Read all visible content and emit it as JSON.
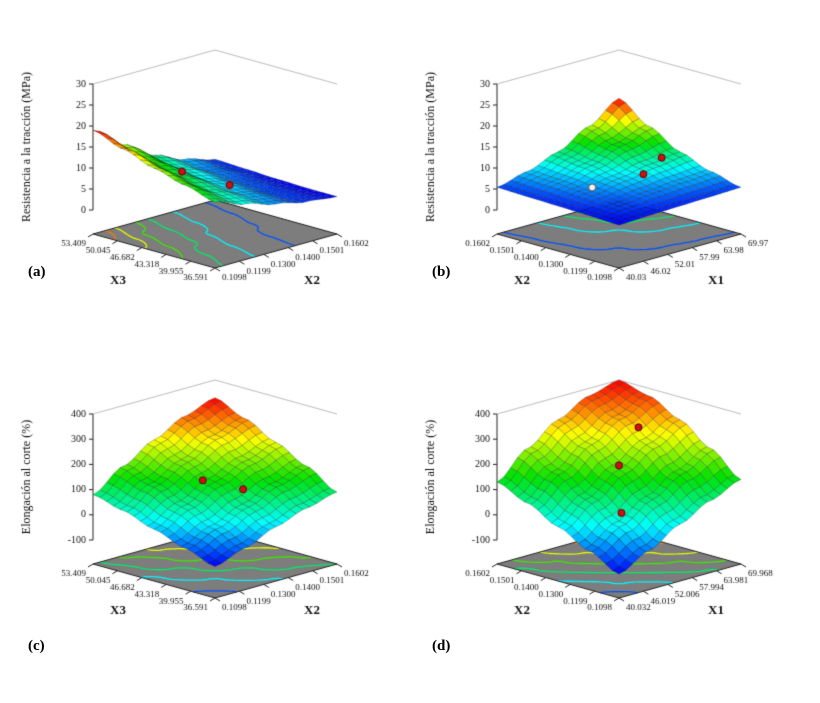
{
  "palette": {
    "base_fill": "#7d7d7d",
    "axis_color": "#222222",
    "text_color": "#111111",
    "mesh_stroke": "rgba(0,0,0,0.45)",
    "point_red": "#cc1111",
    "point_red_edge": "#660000",
    "point_white": "#f2f2f2",
    "colormap_stops": [
      [
        0,
        0,
        255
      ],
      [
        0,
        255,
        255
      ],
      [
        0,
        225,
        0
      ],
      [
        255,
        255,
        0
      ],
      [
        255,
        0,
        0
      ]
    ]
  },
  "contour_levels_fracs": [
    0.08,
    0.24,
    0.4,
    0.56,
    0.72,
    0.88
  ],
  "chart_data": [
    {
      "panel_label": "(a)",
      "type": "surface3d",
      "z_label": "Resistencia a la tracción (MPa)",
      "z_range": [
        0,
        30
      ],
      "z_ticks": [
        "0",
        "5",
        "10",
        "15",
        "20",
        "25",
        "30"
      ],
      "left_axis": {
        "title": "X3",
        "ticks_top_to_bottom": [
          "53.409",
          "50.045",
          "46.682",
          "43.318",
          "39.955",
          "36.591"
        ]
      },
      "right_axis": {
        "title": "X2",
        "ticks_bottom_to_top": [
          "0.1098",
          "0.1199",
          "0.1300",
          "0.1400",
          "0.1501",
          "0.1602"
        ]
      },
      "surface_grid_rows_v0_to_v1": [
        [
          10.0,
          7.5,
          5.5,
          4.0,
          3.2
        ],
        [
          12.0,
          8.5,
          6.0,
          4.2,
          3.2
        ],
        [
          14.0,
          10.0,
          6.8,
          4.6,
          3.4
        ],
        [
          16.5,
          11.5,
          7.8,
          5.2,
          3.7
        ],
        [
          19.0,
          13.5,
          9.0,
          6.0,
          4.0
        ]
      ],
      "design_points": [
        {
          "u": 0.28,
          "v": 0.55,
          "color": "red"
        },
        {
          "u": 0.5,
          "v": 0.38,
          "color": "red"
        }
      ]
    },
    {
      "panel_label": "(b)",
      "type": "surface3d",
      "z_label": "Resistencia a la tracción (MPa)",
      "z_range": [
        0,
        30
      ],
      "z_ticks": [
        "0",
        "5",
        "10",
        "15",
        "20",
        "25",
        "30"
      ],
      "left_axis": {
        "title": "X2",
        "ticks_top_to_bottom": [
          "0.1602",
          "0.1501",
          "0.1400",
          "0.1300",
          "0.1199",
          "0.1098"
        ]
      },
      "right_axis": {
        "title": "X1",
        "ticks_bottom_to_top": [
          "40.03",
          "46.02",
          "52.01",
          "57.99",
          "63.98",
          "69.97"
        ]
      },
      "surface_grid_rows_v0_to_v1": [
        [
          4.5,
          4.8,
          5.0,
          5.2,
          5.4
        ],
        [
          4.8,
          5.5,
          6.2,
          6.8,
          7.2
        ],
        [
          5.0,
          6.2,
          7.5,
          8.8,
          9.8
        ],
        [
          5.2,
          6.8,
          8.8,
          11.5,
          13.8
        ],
        [
          5.4,
          7.2,
          9.8,
          13.8,
          18.5
        ]
      ],
      "design_points": [
        {
          "u": 0.3,
          "v": 0.52,
          "color": "white"
        },
        {
          "u": 0.62,
          "v": 0.42,
          "color": "red"
        },
        {
          "u": 0.85,
          "v": 0.5,
          "color": "red"
        }
      ]
    },
    {
      "panel_label": "(c)",
      "type": "surface3d",
      "z_label": "Elongación al corte (%)",
      "z_range": [
        -100,
        400
      ],
      "z_ticks": [
        "-100",
        "0",
        "100",
        "200",
        "300",
        "400"
      ],
      "left_axis": {
        "title": "X3",
        "ticks_top_to_bottom": [
          "53.409",
          "50.045",
          "46.682",
          "43.318",
          "39.955",
          "36.591"
        ]
      },
      "right_axis": {
        "title": "X2",
        "ticks_bottom_to_top": [
          "0.1098",
          "0.1199",
          "0.1300",
          "0.1400",
          "0.1501",
          "0.1602"
        ]
      },
      "surface_grid_rows_v0_to_v1": [
        [
          -70,
          -30,
          20,
          60,
          90
        ],
        [
          -30,
          20,
          70,
          120,
          160
        ],
        [
          10,
          70,
          130,
          180,
          220
        ],
        [
          50,
          120,
          180,
          240,
          280
        ],
        [
          80,
          160,
          230,
          290,
          330
        ]
      ],
      "design_points": [
        {
          "u": 0.45,
          "v": 0.55,
          "color": "red"
        },
        {
          "u": 0.58,
          "v": 0.35,
          "color": "red"
        }
      ]
    },
    {
      "panel_label": "(d)",
      "type": "surface3d",
      "z_label": "Elongación al corte (%)",
      "z_range": [
        -100,
        400
      ],
      "z_ticks": [
        "-100",
        "0",
        "100",
        "200",
        "300",
        "400"
      ],
      "left_axis": {
        "title": "X2",
        "ticks_top_to_bottom": [
          "0.1602",
          "0.1501",
          "0.1400",
          "0.1300",
          "0.1199",
          "0.1098"
        ]
      },
      "right_axis": {
        "title": "X1",
        "ticks_bottom_to_top": [
          "40.032",
          "46.019",
          "52.006",
          "57.994",
          "63.981",
          "69.968"
        ]
      },
      "surface_grid_rows_v0_to_v1": [
        [
          -100,
          -40,
          30,
          90,
          140
        ],
        [
          -40,
          30,
          100,
          170,
          230
        ],
        [
          20,
          100,
          180,
          250,
          310
        ],
        [
          80,
          170,
          250,
          320,
          370
        ],
        [
          130,
          230,
          310,
          370,
          400
        ]
      ],
      "design_points": [
        {
          "u": 0.32,
          "v": 0.3,
          "color": "red"
        },
        {
          "u": 0.52,
          "v": 0.52,
          "color": "red"
        },
        {
          "u": 0.78,
          "v": 0.62,
          "color": "red"
        }
      ]
    }
  ]
}
